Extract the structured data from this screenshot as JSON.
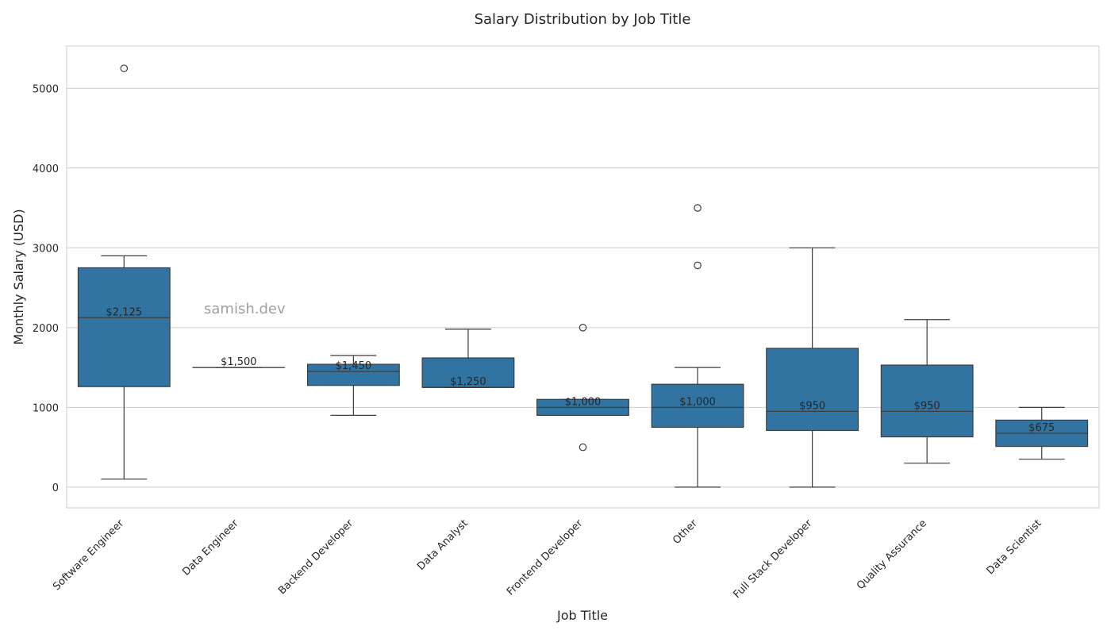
{
  "chart_data": {
    "type": "box",
    "title": "Salary Distribution by Job Title",
    "xlabel": "Job Title",
    "ylabel": "Monthly Salary (USD)",
    "ylim": [
      -260,
      5530
    ],
    "yticks": [
      0,
      1000,
      2000,
      3000,
      4000,
      5000
    ],
    "grid": true,
    "watermark": "samish.dev",
    "box_color": "#3274a1",
    "edge_color": "#3d3d3d",
    "categories": [
      "Software Engineer",
      "Data Engineer",
      "Backend Developer",
      "Data Analyst",
      "Frontend Developer",
      "Other",
      "Full Stack Developer",
      "Quality Assurance",
      "Data Scientist"
    ],
    "boxes": [
      {
        "whislo": 100,
        "q1": 1260,
        "med": 2125,
        "q3": 2750,
        "whishi": 2900,
        "fliers": [
          5250
        ],
        "label": "$2,125"
      },
      {
        "whislo": 1500,
        "q1": 1500,
        "med": 1500,
        "q3": 1500,
        "whishi": 1500,
        "fliers": [],
        "label": "$1,500"
      },
      {
        "whislo": 900,
        "q1": 1275,
        "med": 1450,
        "q3": 1540,
        "whishi": 1650,
        "fliers": [],
        "label": "$1,450"
      },
      {
        "whislo": 1250,
        "q1": 1250,
        "med": 1250,
        "q3": 1620,
        "whishi": 1980,
        "fliers": [],
        "label": "$1,250"
      },
      {
        "whislo": 900,
        "q1": 900,
        "med": 1000,
        "q3": 1100,
        "whishi": 1100,
        "fliers": [
          500,
          2000
        ],
        "label": "$1,000"
      },
      {
        "whislo": 0,
        "q1": 750,
        "med": 1000,
        "q3": 1290,
        "whishi": 1500,
        "fliers": [
          2780,
          3500
        ],
        "label": "$1,000"
      },
      {
        "whislo": 0,
        "q1": 710,
        "med": 950,
        "q3": 1740,
        "whishi": 3000,
        "fliers": [],
        "label": "$950"
      },
      {
        "whislo": 300,
        "q1": 630,
        "med": 950,
        "q3": 1530,
        "whishi": 2100,
        "fliers": [],
        "label": "$950"
      },
      {
        "whislo": 350,
        "q1": 510,
        "med": 675,
        "q3": 840,
        "whishi": 1000,
        "fliers": [],
        "label": "$675"
      }
    ]
  }
}
